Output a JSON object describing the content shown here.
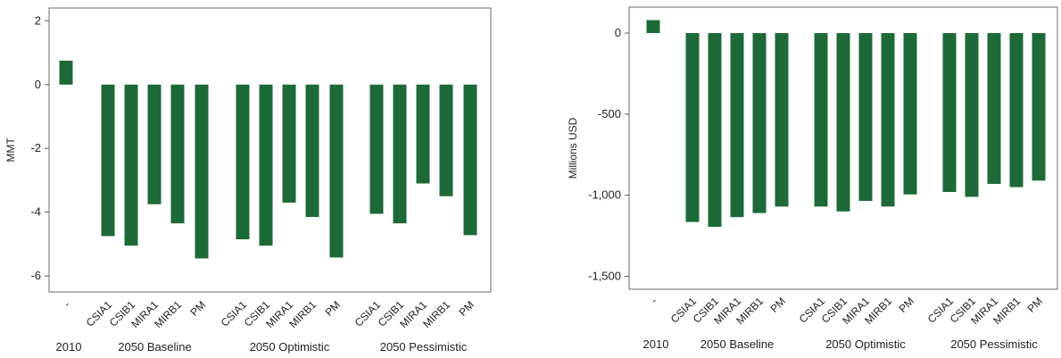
{
  "chart_data": [
    {
      "type": "bar",
      "ylabel": "MMT",
      "ylim": [
        -6.5,
        2.4
      ],
      "yticks": [
        2,
        0,
        -2,
        -4,
        -6
      ],
      "ytick_labels": [
        "2",
        "0",
        "-2",
        "-4",
        "-6"
      ],
      "grid": false,
      "bar_color": "#1d6a38",
      "groups": [
        {
          "label": "2010",
          "categories": [
            "-"
          ],
          "values": [
            0.75
          ]
        },
        {
          "label": "2050 Baseline",
          "categories": [
            "CSIA1",
            "CSIB1",
            "MIRA1",
            "MIRB1",
            "PM"
          ],
          "values": [
            -4.75,
            -5.05,
            -3.75,
            -4.35,
            -5.45
          ]
        },
        {
          "label": "2050 Optimistic",
          "categories": [
            "CSIA1",
            "CSIB1",
            "MIRA1",
            "MIRB1",
            "PM"
          ],
          "values": [
            -4.85,
            -5.05,
            -3.7,
            -4.15,
            -5.42
          ]
        },
        {
          "label": "2050 Pessimistic",
          "categories": [
            "CSIA1",
            "CSIB1",
            "MIRA1",
            "MIRB1",
            "PM"
          ],
          "values": [
            -4.05,
            -4.35,
            -3.1,
            -3.5,
            -4.72
          ]
        }
      ]
    },
    {
      "type": "bar",
      "ylabel": "Millions USD",
      "ylim": [
        -1580,
        160
      ],
      "yticks": [
        0,
        -500,
        -1000,
        -1500
      ],
      "ytick_labels": [
        "0",
        "-500",
        "-1,000",
        "-1,500"
      ],
      "grid": false,
      "bar_color": "#1d6a38",
      "groups": [
        {
          "label": "2010",
          "categories": [
            "-"
          ],
          "values": [
            80
          ]
        },
        {
          "label": "2050 Baseline",
          "categories": [
            "CSIA1",
            "CSIB1",
            "MIRA1",
            "MIRB1",
            "PM"
          ],
          "values": [
            -1165,
            -1195,
            -1135,
            -1110,
            -1070
          ]
        },
        {
          "label": "2050 Optimistic",
          "categories": [
            "CSIA1",
            "CSIB1",
            "MIRA1",
            "MIRB1",
            "PM"
          ],
          "values": [
            -1070,
            -1100,
            -1035,
            -1070,
            -995
          ]
        },
        {
          "label": "2050 Pessimistic",
          "categories": [
            "CSIA1",
            "CSIB1",
            "MIRA1",
            "MIRB1",
            "PM"
          ],
          "values": [
            -980,
            -1010,
            -930,
            -950,
            -910
          ]
        }
      ]
    }
  ]
}
